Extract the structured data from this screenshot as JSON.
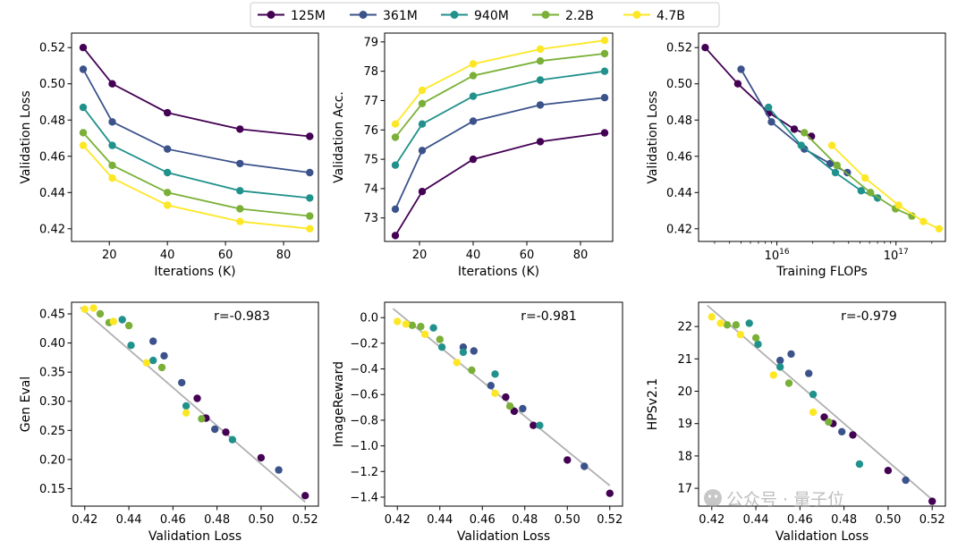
{
  "legend": {
    "placement": "top-center",
    "entries": [
      {
        "name": "125M",
        "color": "#440154"
      },
      {
        "name": "361M",
        "color": "#3b528b"
      },
      {
        "name": "940M",
        "color": "#21918c"
      },
      {
        "name": "2.2B",
        "color": "#7ab037"
      },
      {
        "name": "4.7B",
        "color": "#fde725"
      }
    ]
  },
  "watermark": "公众号 · 量子位",
  "chart_data": [
    {
      "type": "line",
      "xlabel": "Iterations (K)",
      "ylabel": "Validation Loss",
      "xlim": [
        7,
        92
      ],
      "ylim": [
        0.413,
        0.528
      ],
      "xticks": [
        20,
        40,
        60,
        80
      ],
      "yticks": [
        0.42,
        0.44,
        0.46,
        0.48,
        0.5,
        0.52
      ],
      "ytick_labels": [
        "0.42",
        "0.44",
        "0.46",
        "0.48",
        "0.50",
        "0.52"
      ],
      "x": [
        11,
        21,
        40,
        65,
        89
      ],
      "series": [
        {
          "name": "125M",
          "values": [
            0.52,
            0.5,
            0.484,
            0.475,
            0.471
          ]
        },
        {
          "name": "361M",
          "values": [
            0.508,
            0.479,
            0.464,
            0.456,
            0.451
          ]
        },
        {
          "name": "940M",
          "values": [
            0.487,
            0.466,
            0.451,
            0.441,
            0.437
          ]
        },
        {
          "name": "2.2B",
          "values": [
            0.473,
            0.455,
            0.44,
            0.431,
            0.427
          ]
        },
        {
          "name": "4.7B",
          "values": [
            0.466,
            0.448,
            0.433,
            0.424,
            0.42
          ]
        }
      ]
    },
    {
      "type": "line",
      "xlabel": "Iterations (K)",
      "ylabel": "Validation Acc.",
      "xlim": [
        7,
        92
      ],
      "ylim": [
        72.2,
        79.3
      ],
      "xticks": [
        20,
        40,
        60,
        80
      ],
      "yticks": [
        73,
        74,
        75,
        76,
        77,
        78,
        79
      ],
      "ytick_labels": [
        "73",
        "74",
        "75",
        "76",
        "77",
        "78",
        "79"
      ],
      "x": [
        11,
        21,
        40,
        65,
        89
      ],
      "series": [
        {
          "name": "125M",
          "values": [
            72.4,
            73.9,
            75.0,
            75.6,
            75.9
          ]
        },
        {
          "name": "361M",
          "values": [
            73.3,
            75.3,
            76.3,
            76.85,
            77.1
          ]
        },
        {
          "name": "940M",
          "values": [
            74.8,
            76.2,
            77.15,
            77.7,
            78.0
          ]
        },
        {
          "name": "2.2B",
          "values": [
            75.75,
            76.9,
            77.85,
            78.35,
            78.6
          ]
        },
        {
          "name": "4.7B",
          "values": [
            76.2,
            77.35,
            78.25,
            78.75,
            79.05
          ]
        }
      ]
    },
    {
      "type": "line",
      "xscale": "log",
      "xlabel": "Training FLOPs",
      "ylabel": "Validation Loss",
      "xlim": [
        2200000000000000.0,
        2.6e+17
      ],
      "ylim": [
        0.413,
        0.528
      ],
      "xticks": [
        1e+16,
        1e+17
      ],
      "xtick_labels": [
        {
          "base": "10",
          "exp": "16"
        },
        {
          "base": "10",
          "exp": "17"
        }
      ],
      "yticks": [
        0.42,
        0.44,
        0.46,
        0.48,
        0.5,
        0.52
      ],
      "ytick_labels": [
        "0.42",
        "0.44",
        "0.46",
        "0.48",
        "0.50",
        "0.52"
      ],
      "series": [
        {
          "name": "125M",
          "x": [
            2500000000000000.0,
            4700000000000000.0,
            8600000000000000.0,
            1.4e+16,
            1.95e+16
          ],
          "values": [
            0.52,
            0.5,
            0.484,
            0.475,
            0.471
          ]
        },
        {
          "name": "361M",
          "x": [
            5000000000000000.0,
            9000000000000000.0,
            1.7e+16,
            2.8e+16,
            3.9e+16
          ],
          "values": [
            0.508,
            0.479,
            0.464,
            0.456,
            0.451
          ]
        },
        {
          "name": "940M",
          "x": [
            8500000000000000.0,
            1.6e+16,
            3.1e+16,
            5.1e+16,
            7e+16
          ],
          "values": [
            0.487,
            0.466,
            0.451,
            0.441,
            0.437
          ]
        },
        {
          "name": "2.2B",
          "x": [
            1.7e+16,
            3.2e+16,
            6.1e+16,
            9.9e+16,
            1.36e+17
          ],
          "values": [
            0.473,
            0.455,
            0.44,
            0.431,
            0.427
          ]
        },
        {
          "name": "4.7B",
          "x": [
            2.9e+16,
            5.5e+16,
            1.05e+17,
            1.7e+17,
            2.3e+17
          ],
          "values": [
            0.466,
            0.448,
            0.433,
            0.424,
            0.42
          ]
        }
      ]
    },
    {
      "type": "scatter",
      "xlabel": "Validation Loss",
      "ylabel": "Gen Eval",
      "annotation": "r=-0.983",
      "xlim": [
        0.414,
        0.526
      ],
      "ylim": [
        0.12,
        0.47
      ],
      "xticks": [
        0.42,
        0.44,
        0.46,
        0.48,
        0.5,
        0.52
      ],
      "xtick_labels": [
        "0.42",
        "0.44",
        "0.46",
        "0.48",
        "0.50",
        "0.52"
      ],
      "yticks": [
        0.15,
        0.2,
        0.25,
        0.3,
        0.35,
        0.4,
        0.45
      ],
      "ytick_labels": [
        "0.15",
        "0.20",
        "0.25",
        "0.30",
        "0.35",
        "0.40",
        "0.45"
      ],
      "fit_line": {
        "x": [
          0.418,
          0.52
        ],
        "y": [
          0.461,
          0.127
        ]
      },
      "series": [
        {
          "name": "125M",
          "x": [
            0.52,
            0.5,
            0.484,
            0.475,
            0.471
          ],
          "values": [
            0.138,
            0.203,
            0.247,
            0.271,
            0.305
          ]
        },
        {
          "name": "361M",
          "x": [
            0.508,
            0.479,
            0.464,
            0.456,
            0.451
          ],
          "values": [
            0.182,
            0.252,
            0.332,
            0.378,
            0.403
          ]
        },
        {
          "name": "940M",
          "x": [
            0.487,
            0.466,
            0.451,
            0.441,
            0.437
          ],
          "values": [
            0.234,
            0.292,
            0.37,
            0.396,
            0.44
          ]
        },
        {
          "name": "2.2B",
          "x": [
            0.473,
            0.455,
            0.44,
            0.431,
            0.427
          ],
          "values": [
            0.27,
            0.358,
            0.43,
            0.435,
            0.45
          ]
        },
        {
          "name": "4.7B",
          "x": [
            0.466,
            0.448,
            0.433,
            0.424,
            0.42
          ],
          "values": [
            0.28,
            0.366,
            0.437,
            0.46,
            0.458
          ]
        }
      ]
    },
    {
      "type": "scatter",
      "xlabel": "Validation Loss",
      "ylabel": "ImageReward",
      "annotation": "r=-0.981",
      "xlim": [
        0.414,
        0.526
      ],
      "ylim": [
        -1.47,
        0.12
      ],
      "xticks": [
        0.42,
        0.44,
        0.46,
        0.48,
        0.5,
        0.52
      ],
      "xtick_labels": [
        "0.42",
        "0.44",
        "0.46",
        "0.48",
        "0.50",
        "0.52"
      ],
      "yticks": [
        -1.4,
        -1.2,
        -1.0,
        -0.8,
        -0.6,
        -0.4,
        -0.2,
        0.0
      ],
      "ytick_labels": [
        "−1.4",
        "−1.2",
        "−1.0",
        "−0.8",
        "−0.6",
        "−0.4",
        "−0.2",
        "0.0"
      ],
      "fit_line": {
        "x": [
          0.418,
          0.52
        ],
        "y": [
          0.07,
          -1.31
        ]
      },
      "series": [
        {
          "name": "125M",
          "x": [
            0.52,
            0.5,
            0.484,
            0.475,
            0.471
          ],
          "values": [
            -1.37,
            -1.11,
            -0.84,
            -0.73,
            -0.62
          ]
        },
        {
          "name": "361M",
          "x": [
            0.508,
            0.479,
            0.464,
            0.456,
            0.451
          ],
          "values": [
            -1.16,
            -0.71,
            -0.53,
            -0.26,
            -0.23
          ]
        },
        {
          "name": "940M",
          "x": [
            0.487,
            0.466,
            0.451,
            0.441,
            0.437
          ],
          "values": [
            -0.84,
            -0.44,
            -0.27,
            -0.23,
            -0.08
          ]
        },
        {
          "name": "2.2B",
          "x": [
            0.473,
            0.455,
            0.44,
            0.431,
            0.427
          ],
          "values": [
            -0.69,
            -0.41,
            -0.17,
            -0.07,
            -0.06
          ]
        },
        {
          "name": "4.7B",
          "x": [
            0.466,
            0.448,
            0.433,
            0.424,
            0.42
          ],
          "values": [
            -0.59,
            -0.35,
            -0.13,
            -0.05,
            -0.03
          ]
        }
      ]
    },
    {
      "type": "scatter",
      "xlabel": "Validation Loss",
      "ylabel": "HPSv2.1",
      "annotation": "r=-0.979",
      "xlim": [
        0.414,
        0.526
      ],
      "ylim": [
        16.45,
        22.75
      ],
      "xticks": [
        0.42,
        0.44,
        0.46,
        0.48,
        0.5,
        0.52
      ],
      "xtick_labels": [
        "0.42",
        "0.44",
        "0.46",
        "0.48",
        "0.50",
        "0.52"
      ],
      "yticks": [
        17,
        18,
        19,
        20,
        21,
        22
      ],
      "ytick_labels": [
        "17",
        "18",
        "19",
        "20",
        "21",
        "22"
      ],
      "fit_line": {
        "x": [
          0.418,
          0.52
        ],
        "y": [
          22.65,
          16.65
        ]
      },
      "series": [
        {
          "name": "125M",
          "x": [
            0.52,
            0.5,
            0.484,
            0.475,
            0.471
          ],
          "values": [
            16.6,
            17.55,
            18.65,
            19.0,
            19.2
          ]
        },
        {
          "name": "361M",
          "x": [
            0.508,
            0.479,
            0.464,
            0.456,
            0.451
          ],
          "values": [
            17.25,
            18.75,
            20.55,
            21.15,
            20.95
          ]
        },
        {
          "name": "940M",
          "x": [
            0.487,
            0.466,
            0.451,
            0.441,
            0.437
          ],
          "values": [
            17.75,
            19.9,
            20.75,
            21.45,
            22.1
          ]
        },
        {
          "name": "2.2B",
          "x": [
            0.473,
            0.455,
            0.44,
            0.431,
            0.427
          ],
          "values": [
            19.05,
            20.25,
            21.65,
            22.05,
            22.05
          ]
        },
        {
          "name": "4.7B",
          "x": [
            0.466,
            0.448,
            0.433,
            0.424,
            0.42
          ],
          "values": [
            19.35,
            20.5,
            21.75,
            22.1,
            22.3
          ]
        }
      ]
    }
  ]
}
